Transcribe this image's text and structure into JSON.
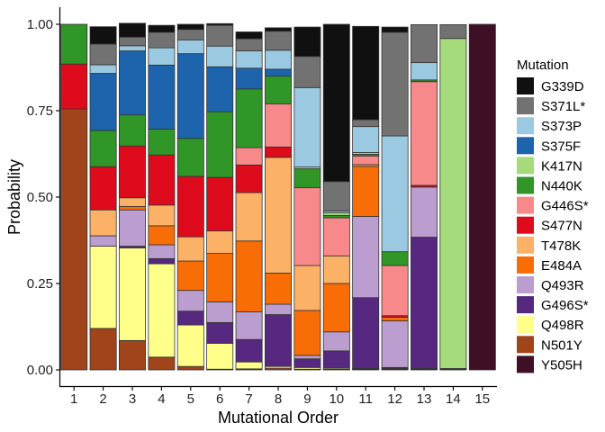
{
  "chart_data": {
    "type": "bar",
    "stacked": true,
    "title": "",
    "xlabel": "Mutational Order",
    "ylabel": "Probability",
    "ylim": [
      0,
      1
    ],
    "yticks": [
      "0.00",
      "0.25",
      "0.50",
      "0.75",
      "1.00"
    ],
    "categories": [
      "1",
      "2",
      "3",
      "4",
      "5",
      "6",
      "7",
      "8",
      "9",
      "10",
      "11",
      "12",
      "13",
      "14",
      "15"
    ],
    "legend": {
      "title": "Mutation",
      "position": "right"
    },
    "grid": false,
    "series": [
      {
        "name": "Y505H",
        "color": "#3f0f25",
        "values": [
          0,
          0,
          0,
          0,
          0,
          0,
          0,
          0,
          0,
          0,
          0,
          0,
          0,
          0,
          1.0
        ]
      },
      {
        "name": "N501Y",
        "color": "#a0441c",
        "values": [
          0.755,
          0.12,
          0.085,
          0.037,
          0.01,
          0.002,
          0.003,
          0.005,
          0.002,
          0.002,
          0.002,
          0.002,
          0.002,
          0.002,
          0
        ]
      },
      {
        "name": "Q498R",
        "color": "#ffff8a",
        "values": [
          0,
          0.238,
          0.268,
          0.27,
          0.12,
          0.075,
          0.02,
          0.005,
          0.005,
          0.003,
          0.002,
          0.002,
          0.002,
          0.002,
          0
        ]
      },
      {
        "name": "G496S*",
        "color": "#57287f",
        "values": [
          0,
          0,
          0.005,
          0.015,
          0.04,
          0.06,
          0.065,
          0.15,
          0.025,
          0.05,
          0.205,
          0.003,
          0.38,
          0,
          0
        ]
      },
      {
        "name": "Q493R",
        "color": "#bb9dcf",
        "values": [
          0,
          0.03,
          0.105,
          0.04,
          0.06,
          0.06,
          0.08,
          0.03,
          0.01,
          0.055,
          0.235,
          0.135,
          0.145,
          0,
          0
        ]
      },
      {
        "name": "E484A",
        "color": "#f96d06",
        "values": [
          0,
          0,
          0.01,
          0.055,
          0.085,
          0.14,
          0.205,
          0.09,
          0.13,
          0.14,
          0.145,
          0.01,
          0,
          0,
          0
        ]
      },
      {
        "name": "T478K",
        "color": "#fbb266",
        "values": [
          0,
          0.075,
          0.025,
          0.06,
          0.07,
          0.065,
          0.14,
          0.335,
          0.13,
          0.08,
          0.005,
          0,
          0,
          0,
          0
        ]
      },
      {
        "name": "S477N",
        "color": "#dd0b1b",
        "values": [
          0.13,
          0.125,
          0.15,
          0.145,
          0.175,
          0.155,
          0.08,
          0.03,
          0,
          0,
          0,
          0.005,
          0.005,
          0,
          0
        ]
      },
      {
        "name": "G446S*",
        "color": "#f8898a",
        "values": [
          0,
          0,
          0,
          0,
          0,
          0,
          0.05,
          0.125,
          0.225,
          0.11,
          0.025,
          0.145,
          0.3,
          0,
          0
        ]
      },
      {
        "name": "N440K",
        "color": "#2f9627",
        "values": [
          0.115,
          0.105,
          0.09,
          0.075,
          0.11,
          0.19,
          0.17,
          0.08,
          0.055,
          0.007,
          0.005,
          0.04,
          0.005,
          0,
          0
        ]
      },
      {
        "name": "K417N",
        "color": "#a5db7a",
        "values": [
          0,
          0,
          0,
          0,
          0,
          0,
          0,
          0,
          0.005,
          0.008,
          0.005,
          0,
          0,
          0.955,
          0
        ]
      },
      {
        "name": "S375F",
        "color": "#1e64ad",
        "values": [
          0,
          0.165,
          0.185,
          0.185,
          0.245,
          0.13,
          0.06,
          0.02,
          0,
          0,
          0,
          0,
          0,
          0,
          0
        ]
      },
      {
        "name": "S373P",
        "color": "#9ac9e1",
        "values": [
          0,
          0.025,
          0.015,
          0.05,
          0.04,
          0.06,
          0.05,
          0.055,
          0.23,
          0.005,
          0.075,
          0.335,
          0.05,
          0,
          0
        ]
      },
      {
        "name": "S371L*",
        "color": "#727272",
        "values": [
          0,
          0.06,
          0.025,
          0.045,
          0.03,
          0.06,
          0.035,
          0.055,
          0.09,
          0.085,
          0.02,
          0.3,
          0.11,
          0.04,
          0
        ]
      },
      {
        "name": "G339D",
        "color": "#101010",
        "values": [
          0,
          0.05,
          0.04,
          0.02,
          0.015,
          0.005,
          0.02,
          0.01,
          0.085,
          0.455,
          0.27,
          0.015,
          0,
          0,
          0
        ]
      }
    ]
  }
}
